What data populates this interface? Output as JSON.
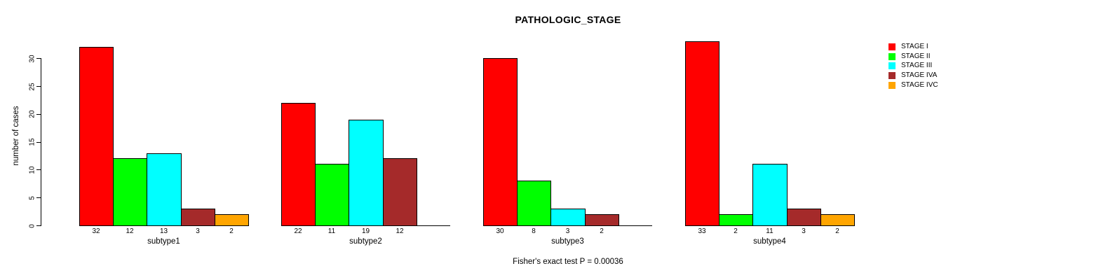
{
  "title": "PATHOLOGIC_STAGE",
  "ylabel": "number of cases",
  "footer": "Fisher's exact test P = 0.00036",
  "legend": {
    "position": "right",
    "items": [
      {
        "label": "STAGE I",
        "color": "#FF0000"
      },
      {
        "label": "STAGE II",
        "color": "#00FF00"
      },
      {
        "label": "STAGE III",
        "color": "#00FFFF"
      },
      {
        "label": "STAGE IVA",
        "color": "#A52A2A"
      },
      {
        "label": "STAGE IVC",
        "color": "#FFA500"
      }
    ]
  },
  "chart_data": {
    "type": "bar",
    "title": "PATHOLOGIC_STAGE",
    "xlabel": "",
    "ylabel": "number of cases",
    "ylim": [
      0,
      30
    ],
    "yticks": [
      0,
      5,
      10,
      15,
      20,
      25,
      30
    ],
    "grid": false,
    "legend_position": "right",
    "categories": [
      "subtype1",
      "subtype2",
      "subtype3",
      "subtype4"
    ],
    "series": [
      {
        "name": "STAGE I",
        "color": "#FF0000",
        "values": [
          32,
          22,
          30,
          33
        ]
      },
      {
        "name": "STAGE II",
        "color": "#00FF00",
        "values": [
          12,
          11,
          8,
          2
        ]
      },
      {
        "name": "STAGE III",
        "color": "#00FFFF",
        "values": [
          13,
          19,
          3,
          11
        ]
      },
      {
        "name": "STAGE IVA",
        "color": "#A52A2A",
        "values": [
          3,
          12,
          2,
          3
        ]
      },
      {
        "name": "STAGE IVC",
        "color": "#FFA500",
        "values": [
          2,
          0,
          0,
          2
        ]
      }
    ],
    "bar_value_labels": [
      [
        "32",
        "12",
        "13",
        "3",
        "2"
      ],
      [
        "22",
        "11",
        "19",
        "12",
        ""
      ],
      [
        "30",
        "8",
        "3",
        "2",
        ""
      ],
      [
        "33",
        "2",
        "11",
        "3",
        "2"
      ]
    ],
    "annotation": "Fisher's exact test P = 0.00036"
  }
}
